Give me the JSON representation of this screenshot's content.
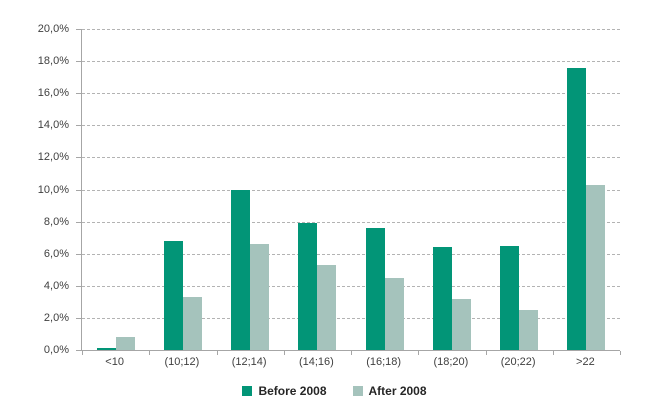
{
  "chart_data": {
    "type": "bar",
    "title": "",
    "categories": [
      "<10",
      "(10;12)",
      "(12;14)",
      "(14;16)",
      "(16;18)",
      "(18;20)",
      "(20;22)",
      ">22"
    ],
    "series": [
      {
        "name": "Before 2008",
        "color": "#029577",
        "values": [
          0.1,
          6.8,
          10.0,
          7.9,
          7.6,
          6.4,
          6.5,
          17.6
        ]
      },
      {
        "name": "After 2008",
        "color": "#a5c3bc",
        "values": [
          0.8,
          3.3,
          6.6,
          5.3,
          4.5,
          3.2,
          2.5,
          10.3
        ]
      }
    ],
    "ylabel": "",
    "xlabel": "",
    "ylim": [
      0,
      20
    ],
    "y_ticks": [
      0,
      2,
      4,
      6,
      8,
      10,
      12,
      14,
      16,
      18,
      20
    ],
    "y_tick_labels": [
      "0,0%",
      "2,0%",
      "4,0%",
      "6,0%",
      "8,0%",
      "10,0%",
      "12,0%",
      "14,0%",
      "16,0%",
      "18,0%",
      "20,0%"
    ],
    "grid": "horizontal-dashed",
    "legend_position": "bottom"
  },
  "colors": {
    "axis": "#a6a6a6",
    "gridline": "#b3b3b3",
    "tick_text": "#404040",
    "legend_text": "#262626",
    "background": "#ffffff"
  }
}
